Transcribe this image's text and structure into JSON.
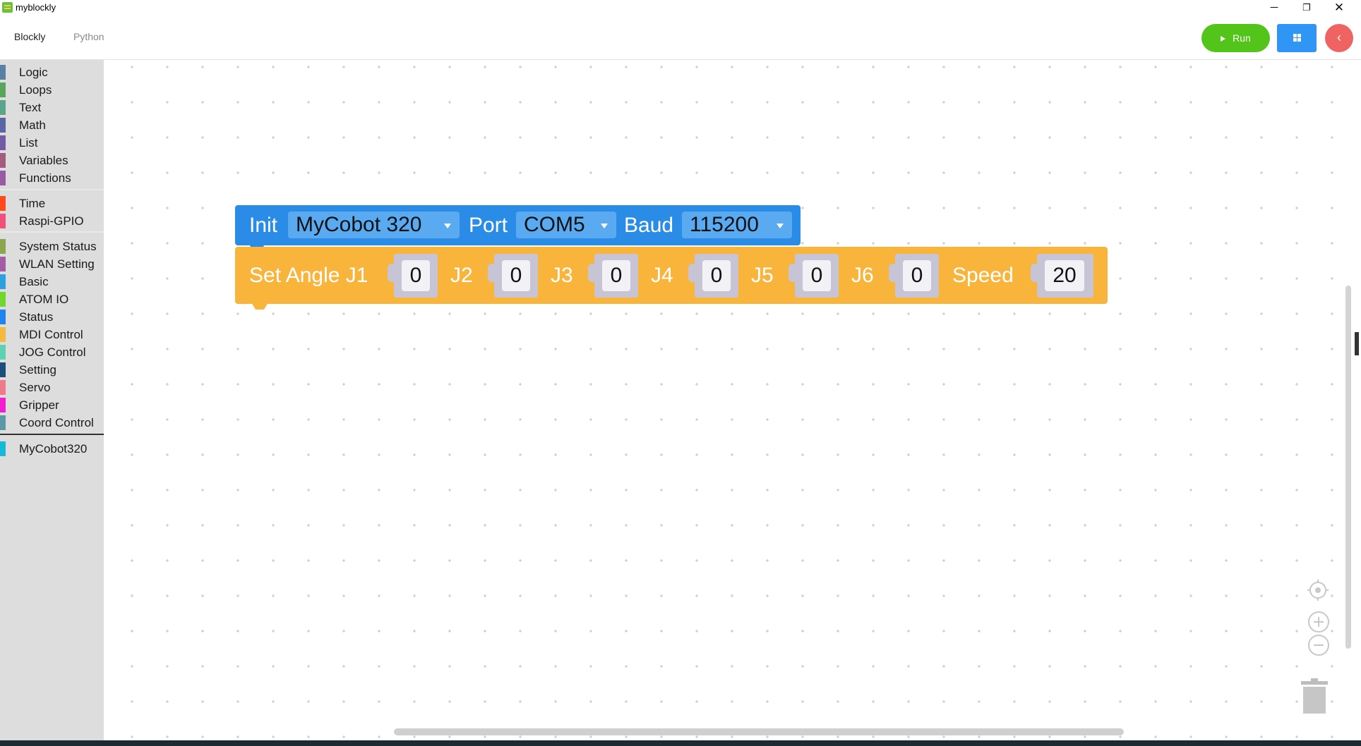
{
  "window": {
    "title": "myblockly",
    "minimize": "─",
    "restore": "❐",
    "close": "✕"
  },
  "tabs": [
    {
      "label": "Blockly",
      "active": true
    },
    {
      "label": "Python",
      "active": false
    }
  ],
  "toolbar": {
    "run_label": "Run",
    "back_icon": "‹"
  },
  "sidebar": {
    "categories": [
      {
        "label": "Logic",
        "color": "#5b80a5"
      },
      {
        "label": "Loops",
        "color": "#5ba55b"
      },
      {
        "label": "Text",
        "color": "#5ba58c"
      },
      {
        "label": "Math",
        "color": "#5b67a5"
      },
      {
        "label": "List",
        "color": "#745ba5"
      },
      {
        "label": "Variables",
        "color": "#a55b80"
      },
      {
        "label": "Functions",
        "color": "#995ba5"
      },
      {
        "label": "Time",
        "color": "#ff4a1c"
      },
      {
        "label": "Raspi-GPIO",
        "color": "#f0507a"
      },
      {
        "label": "System Status",
        "color": "#8ea550"
      },
      {
        "label": "WLAN Setting",
        "color": "#a55ba5"
      },
      {
        "label": "Basic",
        "color": "#2da0e0"
      },
      {
        "label": "ATOM IO",
        "color": "#73d62a"
      },
      {
        "label": "Status",
        "color": "#1f84f0"
      },
      {
        "label": "MDI Control",
        "color": "#f5b942"
      },
      {
        "label": "JOG Control",
        "color": "#5fd1b3"
      },
      {
        "label": "Setting",
        "color": "#1b4f7a"
      },
      {
        "label": "Servo",
        "color": "#f07a8c"
      },
      {
        "label": "Gripper",
        "color": "#f21ed2"
      },
      {
        "label": "Coord Control",
        "color": "#5b99a5"
      },
      {
        "label": "MyCobot320",
        "color": "#18b9d6"
      }
    ]
  },
  "blocks": {
    "init": {
      "label_init": "Init",
      "robot": "MyCobot 320",
      "label_port": "Port",
      "port": "COM5",
      "label_baud": "Baud",
      "baud": "115200",
      "color": "#2b8ce8"
    },
    "set_angle": {
      "label": "Set Angle J1",
      "j1": "0",
      "label_j2": "J2",
      "j2": "0",
      "label_j3": "J3",
      "j3": "0",
      "label_j4": "J4",
      "j4": "0",
      "label_j5": "J5",
      "j5": "0",
      "label_j6": "J6",
      "j6": "0",
      "label_speed": "Speed",
      "speed": "20",
      "color": "#f9b43c"
    }
  },
  "workspace_controls": {
    "center_icon": "target-icon",
    "zoom_in": "+",
    "zoom_out": "−",
    "trash_icon": "trash-icon"
  }
}
